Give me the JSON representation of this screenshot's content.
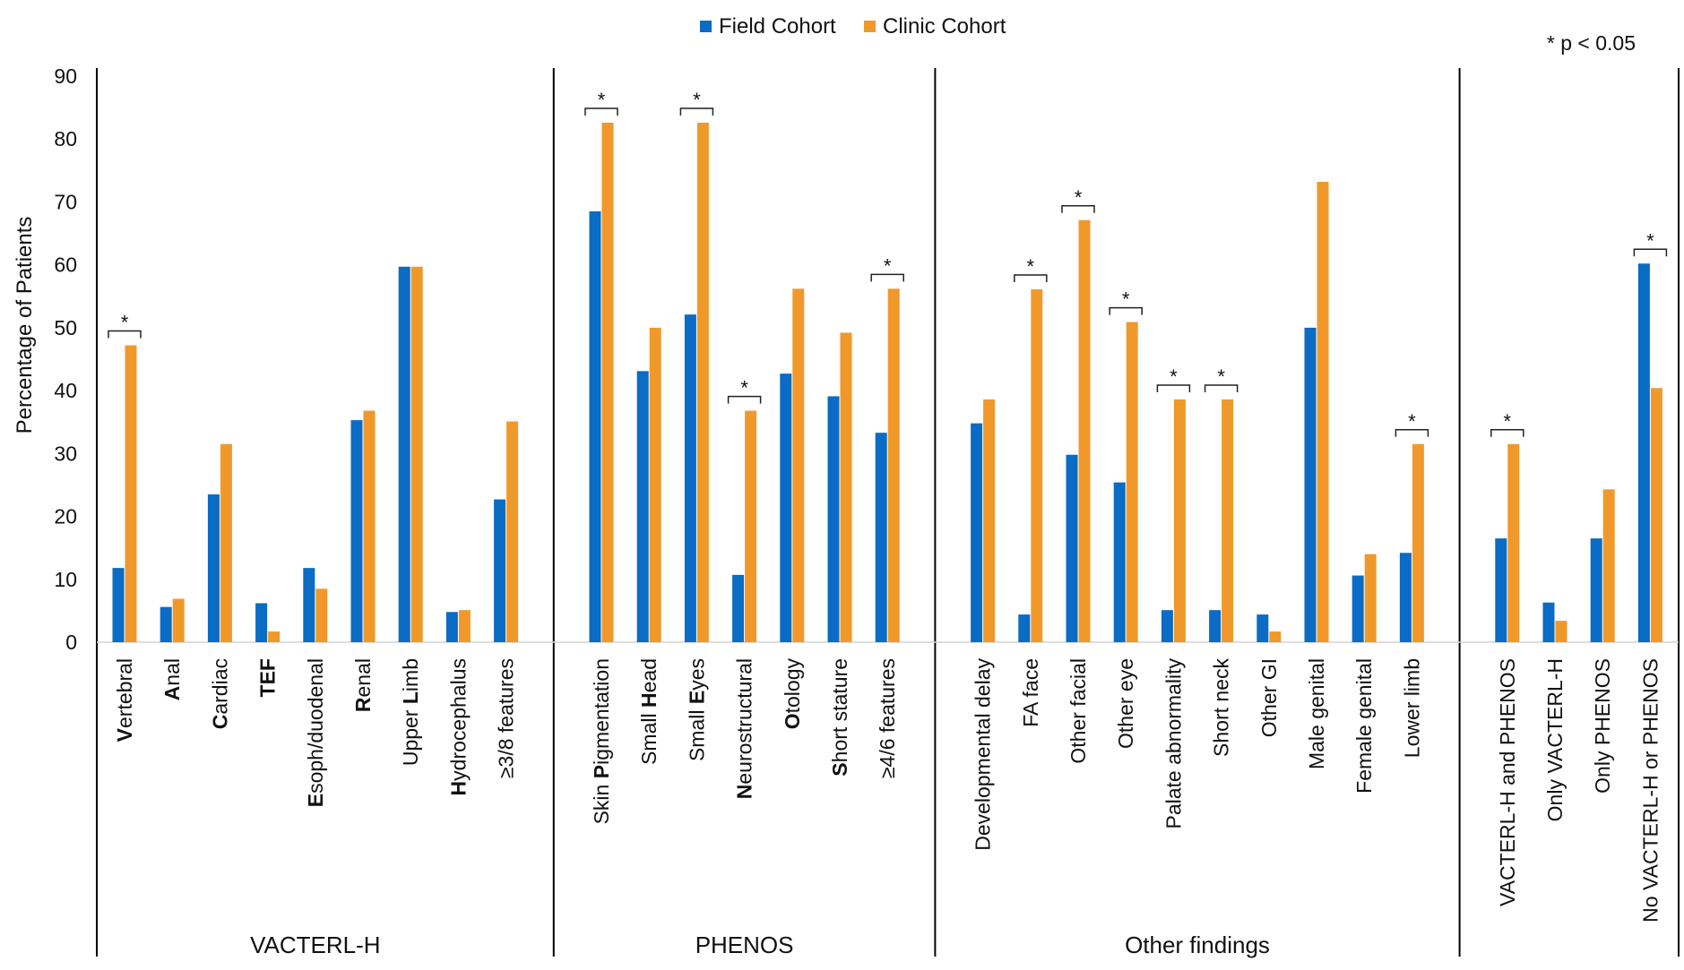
{
  "chart_data": {
    "type": "bar",
    "ylabel": "Percentage of Patients",
    "ylim": [
      0,
      90
    ],
    "yticks": [
      0,
      10,
      20,
      30,
      40,
      50,
      60,
      70,
      80,
      90
    ],
    "grid": false,
    "legend_position": "top-center",
    "significance_note": "* p < 0.05",
    "significance_marker": "*",
    "series": [
      {
        "name": "Field Cohort",
        "color": "#0a6cc4"
      },
      {
        "name": "Clinic Cohort",
        "color": "#f0992a"
      }
    ],
    "groups": [
      {
        "label": "VACTERL-H",
        "items": [
          {
            "label": "Vertebral",
            "bold": "V",
            "field": 11.8,
            "clinic": 47.2,
            "sig": true
          },
          {
            "label": "Anal",
            "bold": "A",
            "field": 5.6,
            "clinic": 6.9,
            "sig": false
          },
          {
            "label": "Cardiac",
            "bold": "C",
            "field": 23.5,
            "clinic": 31.5,
            "sig": false
          },
          {
            "label": "TEF",
            "bold": "TEF",
            "field": 6.2,
            "clinic": 1.7,
            "sig": false
          },
          {
            "label": "Esoph/duodenal",
            "bold": "E",
            "field": 11.8,
            "clinic": 8.5,
            "sig": false
          },
          {
            "label": "Renal",
            "bold": "R",
            "field": 35.3,
            "clinic": 36.8,
            "sig": false
          },
          {
            "label": "Upper Limb",
            "bold": "L",
            "field": 59.7,
            "clinic": 59.7,
            "sig": false
          },
          {
            "label": "Hydrocephalus",
            "bold": "H",
            "field": 4.8,
            "clinic": 5.1,
            "sig": false
          },
          {
            "label": "≥3/8 features",
            "bold": "",
            "field": 22.7,
            "clinic": 35.1,
            "sig": false
          }
        ]
      },
      {
        "label": "PHENOS",
        "items": [
          {
            "label": "Skin Pigmentation",
            "bold": "P",
            "field": 68.5,
            "clinic": 82.6,
            "sig": true
          },
          {
            "label": "Small Head",
            "bold": "H",
            "field": 43.1,
            "clinic": 50.0,
            "sig": false
          },
          {
            "label": "Small Eyes",
            "bold": "E",
            "field": 52.1,
            "clinic": 82.6,
            "sig": true
          },
          {
            "label": "Neurostructural",
            "bold": "N",
            "field": 10.7,
            "clinic": 36.8,
            "sig": true
          },
          {
            "label": "Otology",
            "bold": "O",
            "field": 42.7,
            "clinic": 56.2,
            "sig": false
          },
          {
            "label": "Short stature",
            "bold": "S",
            "field": 39.1,
            "clinic": 49.2,
            "sig": false
          },
          {
            "label": "≥4/6 features",
            "bold": "",
            "field": 33.3,
            "clinic": 56.2,
            "sig": true
          }
        ]
      },
      {
        "label": "Other findings",
        "items": [
          {
            "label": "Developmental delay",
            "bold": "",
            "field": 34.8,
            "clinic": 38.6,
            "sig": false
          },
          {
            "label": "FA face",
            "bold": "",
            "field": 4.4,
            "clinic": 56.1,
            "sig": true
          },
          {
            "label": "Other facial",
            "bold": "",
            "field": 29.8,
            "clinic": 67.1,
            "sig": true
          },
          {
            "label": "Other eye",
            "bold": "",
            "field": 25.4,
            "clinic": 50.9,
            "sig": true
          },
          {
            "label": "Palate abnormality",
            "bold": "",
            "field": 5.1,
            "clinic": 38.6,
            "sig": true
          },
          {
            "label": "Short neck",
            "bold": "",
            "field": 5.1,
            "clinic": 38.6,
            "sig": true
          },
          {
            "label": "Other GI",
            "bold": "",
            "field": 4.4,
            "clinic": 1.7,
            "sig": false
          },
          {
            "label": "Male genital",
            "bold": "",
            "field": 50.0,
            "clinic": 73.2,
            "sig": false
          },
          {
            "label": "Female genital",
            "bold": "",
            "field": 10.6,
            "clinic": 14.0,
            "sig": false
          },
          {
            "label": "Lower limb",
            "bold": "",
            "field": 14.2,
            "clinic": 31.5,
            "sig": true
          }
        ]
      },
      {
        "label": "",
        "items": [
          {
            "label": "VACTERL-H and PHENOS",
            "bold": "",
            "field": 16.5,
            "clinic": 31.5,
            "sig": true
          },
          {
            "label": "Only VACTERL-H",
            "bold": "",
            "field": 6.3,
            "clinic": 3.4,
            "sig": false
          },
          {
            "label": "Only PHENOS",
            "bold": "",
            "field": 16.5,
            "clinic": 24.3,
            "sig": false
          },
          {
            "label": "No VACTERL-H or PHENOS",
            "bold": "",
            "field": 60.2,
            "clinic": 40.4,
            "sig": true
          }
        ]
      }
    ]
  }
}
